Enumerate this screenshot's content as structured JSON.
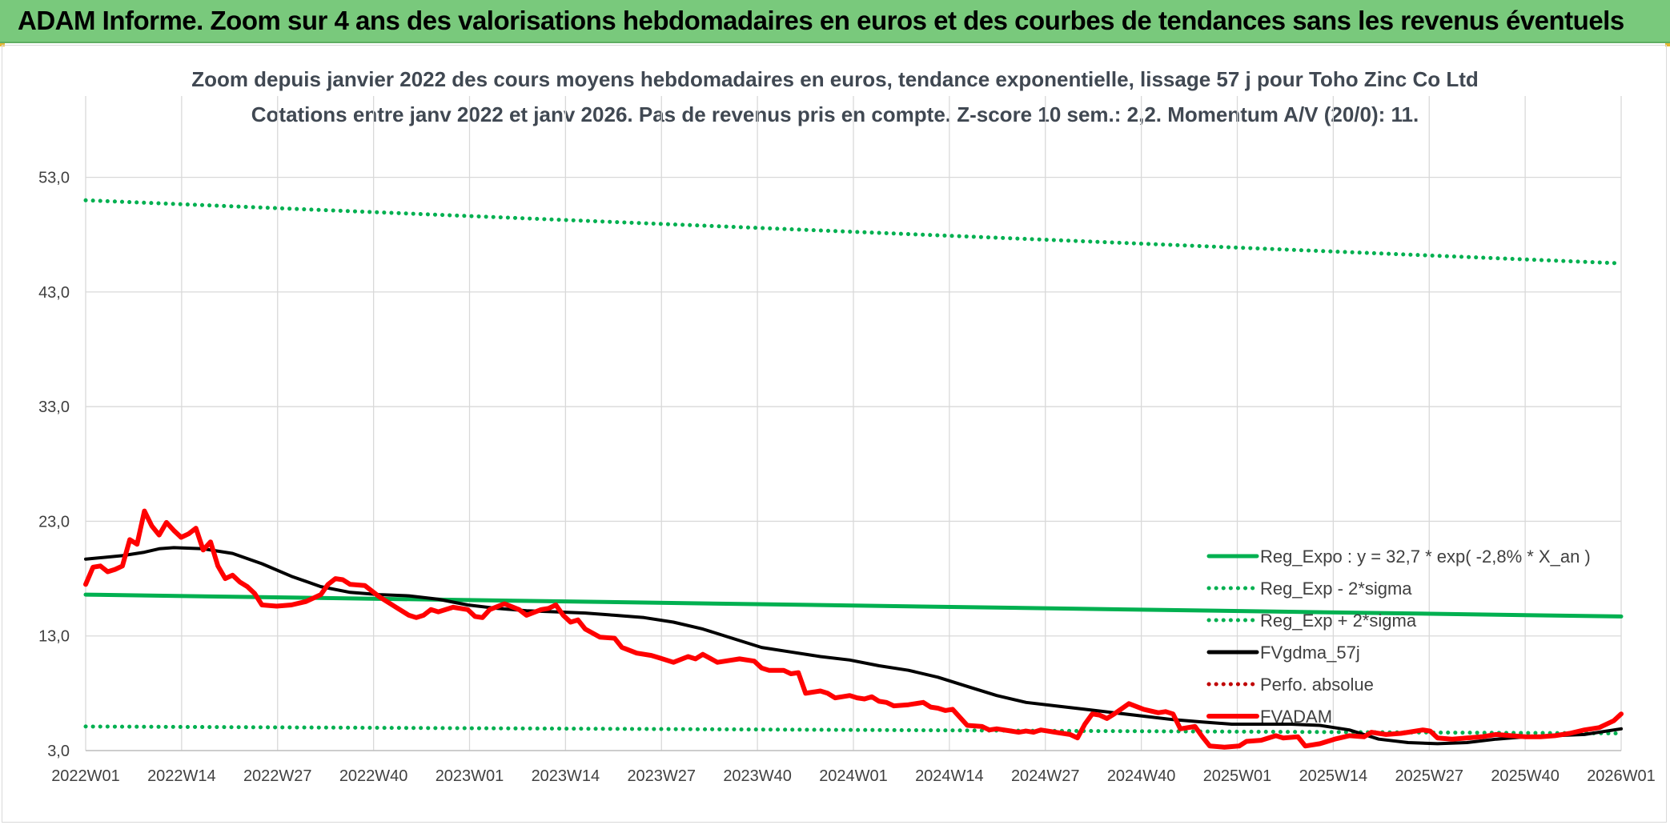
{
  "header": {
    "banner": "ADAM Informe. Zoom sur 4 ans des valorisations hebdomadaires en euros et des courbes de tendances sans les revenus éventuels"
  },
  "chart_data": {
    "type": "line",
    "title": [
      "Zoom depuis janvier 2022 des cours moyens hebdomadaires en euros, tendance exponentielle, lissage 57 j pour Toho Zinc Co Ltd",
      "Cotations entre janv 2022 et janv 2026. Pas de revenus pris en compte. Z-score 10 sem.: 2,2. Momentum A/V (20/0): 11."
    ],
    "xlabel": "",
    "ylabel": "",
    "ylim": [
      3,
      58
    ],
    "y_ticks": [
      "3,0",
      "13,0",
      "23,0",
      "33,0",
      "43,0",
      "53,0"
    ],
    "x_ticks": [
      "2022W01",
      "2022W14",
      "2022W27",
      "2022W40",
      "2023W01",
      "2023W14",
      "2023W27",
      "2023W40",
      "2024W01",
      "2024W14",
      "2024W27",
      "2024W40",
      "2025W01",
      "2025W14",
      "2025W27",
      "2025W40",
      "2026W01"
    ],
    "x_range_weeks": [
      0,
      209
    ],
    "grid": true,
    "legend_position": "bottom-right",
    "series": [
      {
        "name": "Reg_Expo : y = 32,7 * exp( -2,8% *  X_an )",
        "color": "#00b050",
        "style": "solid",
        "points": [
          [
            0,
            16.6
          ],
          [
            209,
            14.7
          ]
        ]
      },
      {
        "name": "Reg_Exp - 2*sigma",
        "color": "#00b050",
        "style": "dotted",
        "points": [
          [
            0,
            5.1
          ],
          [
            209,
            4.5
          ]
        ]
      },
      {
        "name": "Reg_Exp + 2*sigma",
        "color": "#00b050",
        "style": "dotted",
        "points": [
          [
            0,
            51.0
          ],
          [
            209,
            45.5
          ]
        ]
      },
      {
        "name": "FVgdma_57j",
        "color": "#000000",
        "style": "solid",
        "points": [
          [
            0,
            19.7
          ],
          [
            5,
            20.0
          ],
          [
            8,
            20.3
          ],
          [
            10,
            20.6
          ],
          [
            12,
            20.7
          ],
          [
            16,
            20.6
          ],
          [
            20,
            20.2
          ],
          [
            24,
            19.3
          ],
          [
            28,
            18.2
          ],
          [
            32,
            17.3
          ],
          [
            36,
            16.8
          ],
          [
            40,
            16.6
          ],
          [
            44,
            16.5
          ],
          [
            48,
            16.2
          ],
          [
            52,
            15.7
          ],
          [
            56,
            15.4
          ],
          [
            60,
            15.2
          ],
          [
            64,
            15.1
          ],
          [
            68,
            15.0
          ],
          [
            72,
            14.8
          ],
          [
            76,
            14.6
          ],
          [
            80,
            14.2
          ],
          [
            84,
            13.6
          ],
          [
            88,
            12.8
          ],
          [
            92,
            12.0
          ],
          [
            96,
            11.6
          ],
          [
            100,
            11.2
          ],
          [
            104,
            10.9
          ],
          [
            108,
            10.4
          ],
          [
            112,
            10.0
          ],
          [
            116,
            9.4
          ],
          [
            120,
            8.6
          ],
          [
            124,
            7.8
          ],
          [
            128,
            7.2
          ],
          [
            132,
            6.9
          ],
          [
            136,
            6.6
          ],
          [
            140,
            6.3
          ],
          [
            144,
            6.0
          ],
          [
            148,
            5.7
          ],
          [
            152,
            5.5
          ],
          [
            156,
            5.3
          ],
          [
            160,
            5.3
          ],
          [
            164,
            5.3
          ],
          [
            168,
            5.2
          ],
          [
            172,
            4.8
          ],
          [
            176,
            4.0
          ],
          [
            180,
            3.7
          ],
          [
            184,
            3.6
          ],
          [
            188,
            3.7
          ],
          [
            192,
            4.0
          ],
          [
            196,
            4.2
          ],
          [
            200,
            4.3
          ],
          [
            204,
            4.4
          ],
          [
            209,
            4.9
          ]
        ]
      },
      {
        "name": "Perfo. absolue",
        "color": "#c00000",
        "style": "dotted",
        "points": []
      },
      {
        "name": "FVADAM",
        "color": "#ff0000",
        "style": "solid",
        "points": [
          [
            0,
            17.5
          ],
          [
            1,
            19.0
          ],
          [
            2,
            19.1
          ],
          [
            3,
            18.6
          ],
          [
            4,
            18.8
          ],
          [
            5,
            19.1
          ],
          [
            6,
            21.4
          ],
          [
            7,
            21.0
          ],
          [
            8,
            23.9
          ],
          [
            9,
            22.6
          ],
          [
            10,
            21.8
          ],
          [
            11,
            22.9
          ],
          [
            12,
            22.2
          ],
          [
            13,
            21.6
          ],
          [
            14,
            21.9
          ],
          [
            15,
            22.4
          ],
          [
            16,
            20.5
          ],
          [
            17,
            21.2
          ],
          [
            18,
            19.1
          ],
          [
            19,
            18.0
          ],
          [
            20,
            18.3
          ],
          [
            21,
            17.7
          ],
          [
            22,
            17.3
          ],
          [
            23,
            16.7
          ],
          [
            24,
            15.7
          ],
          [
            26,
            15.6
          ],
          [
            28,
            15.7
          ],
          [
            30,
            16.0
          ],
          [
            32,
            16.6
          ],
          [
            33,
            17.5
          ],
          [
            34,
            18.0
          ],
          [
            35,
            17.9
          ],
          [
            36,
            17.5
          ],
          [
            38,
            17.4
          ],
          [
            40,
            16.4
          ],
          [
            42,
            15.6
          ],
          [
            44,
            14.8
          ],
          [
            45,
            14.6
          ],
          [
            46,
            14.8
          ],
          [
            47,
            15.3
          ],
          [
            48,
            15.1
          ],
          [
            50,
            15.5
          ],
          [
            52,
            15.3
          ],
          [
            53,
            14.7
          ],
          [
            54,
            14.6
          ],
          [
            55,
            15.3
          ],
          [
            57,
            15.8
          ],
          [
            59,
            15.3
          ],
          [
            60,
            14.8
          ],
          [
            62,
            15.3
          ],
          [
            63,
            15.4
          ],
          [
            64,
            15.7
          ],
          [
            65,
            14.8
          ],
          [
            66,
            14.2
          ],
          [
            67,
            14.4
          ],
          [
            68,
            13.6
          ],
          [
            70,
            12.9
          ],
          [
            72,
            12.8
          ],
          [
            73,
            12.0
          ],
          [
            75,
            11.5
          ],
          [
            77,
            11.3
          ],
          [
            78,
            11.1
          ],
          [
            80,
            10.7
          ],
          [
            82,
            11.2
          ],
          [
            83,
            11.0
          ],
          [
            84,
            11.4
          ],
          [
            86,
            10.7
          ],
          [
            88,
            10.9
          ],
          [
            89,
            11.0
          ],
          [
            91,
            10.8
          ],
          [
            92,
            10.2
          ],
          [
            93,
            10.0
          ],
          [
            95,
            10.0
          ],
          [
            96,
            9.7
          ],
          [
            97,
            9.8
          ],
          [
            98,
            8.0
          ],
          [
            100,
            8.2
          ],
          [
            101,
            8.0
          ],
          [
            102,
            7.6
          ],
          [
            103,
            7.7
          ],
          [
            104,
            7.8
          ],
          [
            105,
            7.6
          ],
          [
            106,
            7.5
          ],
          [
            107,
            7.7
          ],
          [
            108,
            7.3
          ],
          [
            109,
            7.2
          ],
          [
            110,
            6.9
          ],
          [
            112,
            7.0
          ],
          [
            114,
            7.2
          ],
          [
            115,
            6.8
          ],
          [
            116,
            6.7
          ],
          [
            117,
            6.5
          ],
          [
            118,
            6.6
          ],
          [
            120,
            5.2
          ],
          [
            122,
            5.1
          ],
          [
            123,
            4.8
          ],
          [
            124,
            4.9
          ],
          [
            126,
            4.7
          ],
          [
            127,
            4.6
          ],
          [
            128,
            4.7
          ],
          [
            129,
            4.6
          ],
          [
            130,
            4.8
          ],
          [
            132,
            4.6
          ],
          [
            134,
            4.4
          ],
          [
            135,
            4.1
          ],
          [
            136,
            5.3
          ],
          [
            137,
            6.2
          ],
          [
            138,
            6.1
          ],
          [
            139,
            5.8
          ],
          [
            140,
            6.2
          ],
          [
            142,
            7.1
          ],
          [
            144,
            6.6
          ],
          [
            146,
            6.3
          ],
          [
            147,
            6.4
          ],
          [
            148,
            6.2
          ],
          [
            149,
            4.9
          ],
          [
            151,
            5.1
          ],
          [
            152,
            4.2
          ],
          [
            153,
            3.4
          ],
          [
            155,
            3.3
          ],
          [
            157,
            3.4
          ],
          [
            158,
            3.8
          ],
          [
            160,
            3.9
          ],
          [
            162,
            4.3
          ],
          [
            163,
            4.1
          ],
          [
            165,
            4.2
          ],
          [
            166,
            3.4
          ],
          [
            168,
            3.6
          ],
          [
            170,
            4.0
          ],
          [
            172,
            4.3
          ],
          [
            174,
            4.2
          ],
          [
            175,
            4.6
          ],
          [
            177,
            4.4
          ],
          [
            179,
            4.5
          ],
          [
            180,
            4.6
          ],
          [
            182,
            4.8
          ],
          [
            183,
            4.7
          ],
          [
            184,
            4.1
          ],
          [
            186,
            4.0
          ],
          [
            188,
            4.1
          ],
          [
            190,
            4.2
          ],
          [
            192,
            4.4
          ],
          [
            194,
            4.3
          ],
          [
            196,
            4.2
          ],
          [
            198,
            4.2
          ],
          [
            200,
            4.3
          ],
          [
            202,
            4.5
          ],
          [
            204,
            4.8
          ],
          [
            206,
            5.0
          ],
          [
            208,
            5.6
          ],
          [
            209,
            6.2
          ]
        ]
      }
    ]
  }
}
